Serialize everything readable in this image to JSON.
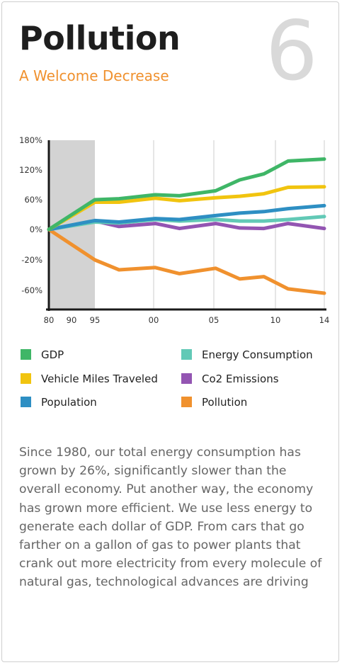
{
  "header": {
    "title": "Pollution",
    "subtitle": "A Welcome Decrease",
    "number": "6"
  },
  "colors": {
    "gdp": "#3fb667",
    "vmt": "#f1c40f",
    "population": "#2e8fc3",
    "energy": "#62c9b6",
    "co2": "#9355b2",
    "pollution": "#f0912e",
    "shade": "#d3d3d3",
    "accent": "#f0912e"
  },
  "chart_data": {
    "type": "line",
    "x": [
      1980,
      1995,
      1997,
      2000,
      2002,
      2005,
      2007,
      2009,
      2011,
      2014
    ],
    "x_tick_labels": [
      "80",
      "90",
      "95",
      "00",
      "05",
      "10",
      "14"
    ],
    "x_tick_values": [
      1980,
      1985,
      1990,
      2000,
      2005,
      2010,
      2014
    ],
    "y_tick_labels": [
      "180%",
      "120%",
      "60%",
      "0%",
      "-20%",
      "-60%"
    ],
    "ylim": [
      -60,
      180
    ],
    "shaded_range": [
      1980,
      1990
    ],
    "grid": "vertical",
    "legend_position": "bottom",
    "series": [
      {
        "name": "GDP",
        "color_key": "gdp",
        "values": [
          0,
          60,
          62,
          70,
          68,
          78,
          100,
          112,
          138,
          142
        ]
      },
      {
        "name": "Vehicle Miles Traveled",
        "color_key": "vmt",
        "values": [
          0,
          55,
          55,
          63,
          58,
          64,
          67,
          72,
          85,
          86
        ]
      },
      {
        "name": "Population",
        "color_key": "population",
        "values": [
          0,
          18,
          15,
          22,
          20,
          28,
          33,
          36,
          42,
          48
        ]
      },
      {
        "name": "Energy Consumption",
        "color_key": "energy",
        "values": [
          0,
          15,
          13,
          20,
          17,
          20,
          17,
          17,
          20,
          26
        ]
      },
      {
        "name": "Co2 Emissions",
        "color_key": "co2",
        "values": [
          0,
          17,
          6,
          12,
          2,
          12,
          3,
          2,
          12,
          2
        ]
      },
      {
        "name": "Pollution",
        "color_key": "pollution",
        "values": [
          0,
          -20,
          -33,
          -30,
          -38,
          -31,
          -45,
          -42,
          -58,
          -63
        ]
      }
    ]
  },
  "legend": {
    "items": [
      "GDP",
      "Energy Consumption",
      "Vehicle Miles Traveled",
      "Co2 Emissions",
      "Population",
      "Pollution"
    ]
  },
  "body": {
    "paragraph": "Since 1980, our total energy consumption has grown by 26%, significantly slower than the overall economy. Put another way, the economy has grown more efficient. We use less energy to generate each dollar of GDP. From cars that go farther on a gallon of gas to power plants that crank out more electricity from every molecule of natural gas, technological advances are driving"
  }
}
